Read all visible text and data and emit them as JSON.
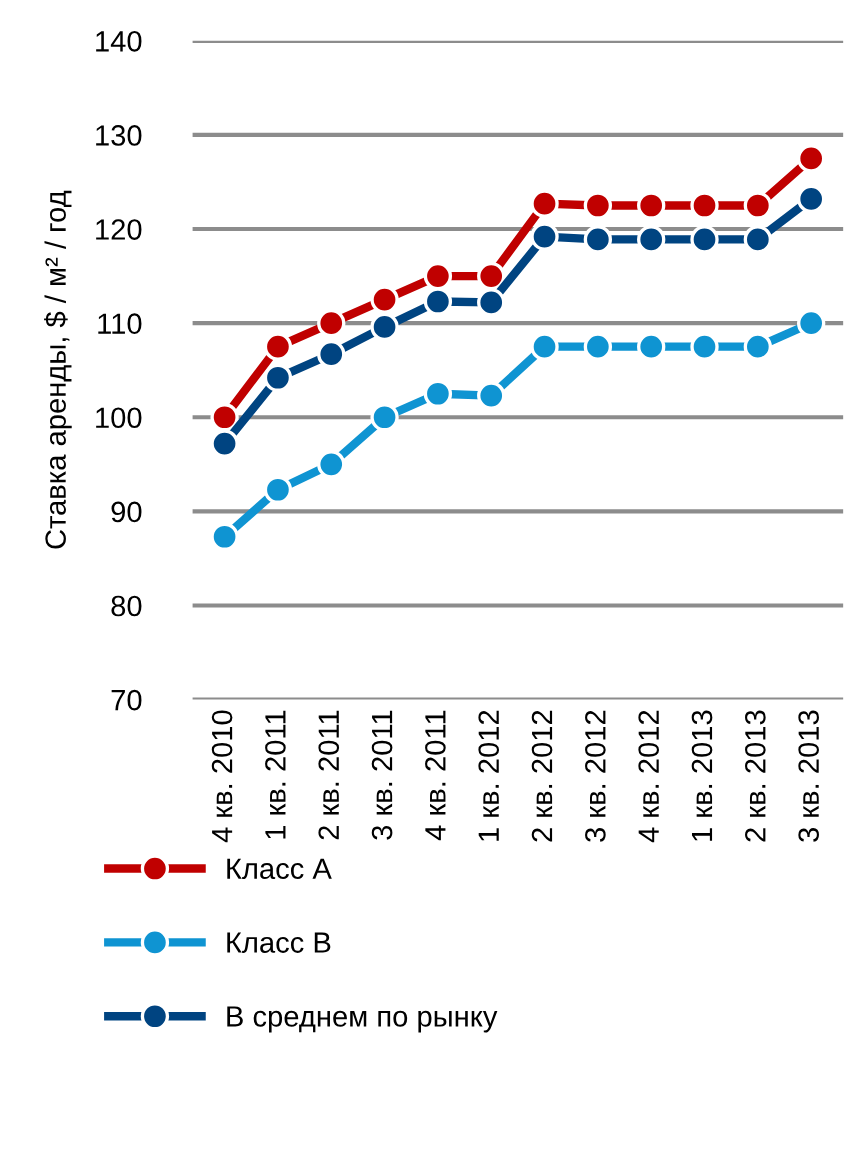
{
  "chart_data": {
    "type": "line",
    "ylabel": "Ставка аренды, $ / м² / год",
    "categories": [
      "4 кв. 2010",
      "1 кв. 2011",
      "2 кв. 2011",
      "3 кв. 2011",
      "4 кв. 2011",
      "1 кв. 2012",
      "2 кв. 2012",
      "3 кв. 2012",
      "4 кв. 2012",
      "1 кв. 2013",
      "2 кв. 2013",
      "3 кв. 2013"
    ],
    "series": [
      {
        "name": "Класс А",
        "color": "#c00000",
        "values": [
          100,
          107.5,
          110,
          112.5,
          115,
          115,
          122.7,
          122.5,
          122.5,
          122.5,
          122.5,
          127.5
        ]
      },
      {
        "name": "Класс В",
        "color": "#0f94d2",
        "values": [
          87.3,
          92.3,
          95,
          100,
          102.5,
          102.3,
          107.5,
          107.5,
          107.5,
          107.5,
          107.5,
          110
        ]
      },
      {
        "name": "В среднем по рынку",
        "color": "#004481",
        "values": [
          97.2,
          104.2,
          106.7,
          109.6,
          112.3,
          112.2,
          119.2,
          118.9,
          118.9,
          118.9,
          118.9,
          123.2
        ]
      }
    ],
    "ylim": [
      70,
      140
    ],
    "yticks": [
      70,
      80,
      90,
      100,
      110,
      120,
      130,
      140
    ],
    "grid": "y",
    "legend": "bottom",
    "marker": "circle",
    "line_style": "solid"
  }
}
